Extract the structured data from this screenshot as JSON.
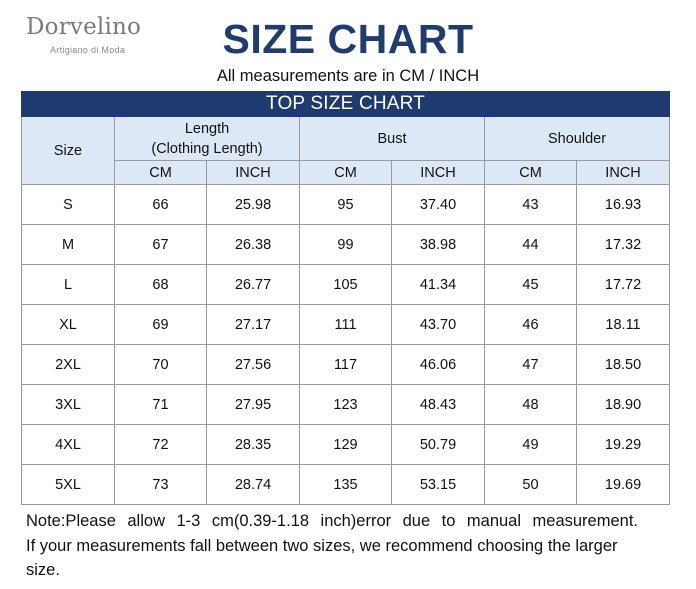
{
  "brand": {
    "name": "Dorvelino",
    "tagline": "Artigiano di Moda"
  },
  "title": "SIZE CHART",
  "subtitle": "All measurements are in  CM / INCH",
  "table": {
    "banner": "TOP SIZE CHART",
    "size_header": "Size",
    "groups": [
      {
        "label_line1": "Length",
        "label_line2": "(Clothing Length)"
      },
      {
        "label_line1": "Bust",
        "label_line2": ""
      },
      {
        "label_line1": "Shoulder",
        "label_line2": ""
      }
    ],
    "units": [
      "CM",
      "INCH",
      "CM",
      "INCH",
      "CM",
      "INCH"
    ],
    "rows": [
      [
        "S",
        "66",
        "25.98",
        "95",
        "37.40",
        "43",
        "16.93"
      ],
      [
        "M",
        "67",
        "26.38",
        "99",
        "38.98",
        "44",
        "17.32"
      ],
      [
        "L",
        "68",
        "26.77",
        "105",
        "41.34",
        "45",
        "17.72"
      ],
      [
        "XL",
        "69",
        "27.17",
        "111",
        "43.70",
        "46",
        "18.11"
      ],
      [
        "2XL",
        "70",
        "27.56",
        "117",
        "46.06",
        "47",
        "18.50"
      ],
      [
        "3XL",
        "71",
        "27.95",
        "123",
        "48.43",
        "48",
        "18.90"
      ],
      [
        "4XL",
        "72",
        "28.35",
        "129",
        "50.79",
        "49",
        "19.29"
      ],
      [
        "5XL",
        "73",
        "28.74",
        "135",
        "53.15",
        "50",
        "19.69"
      ]
    ]
  },
  "note": {
    "line1": "Note:Please allow 1-3 cm(0.39-1.18 inch)error due to manual measurement.",
    "line2": "If your measurements fall between two sizes, we recommend choosing the larger size."
  },
  "colors": {
    "banner_bg": "#1f3a6f",
    "header_bg": "#dde8f6",
    "title": "#1f3c6b",
    "border": "#9a9a9a"
  }
}
